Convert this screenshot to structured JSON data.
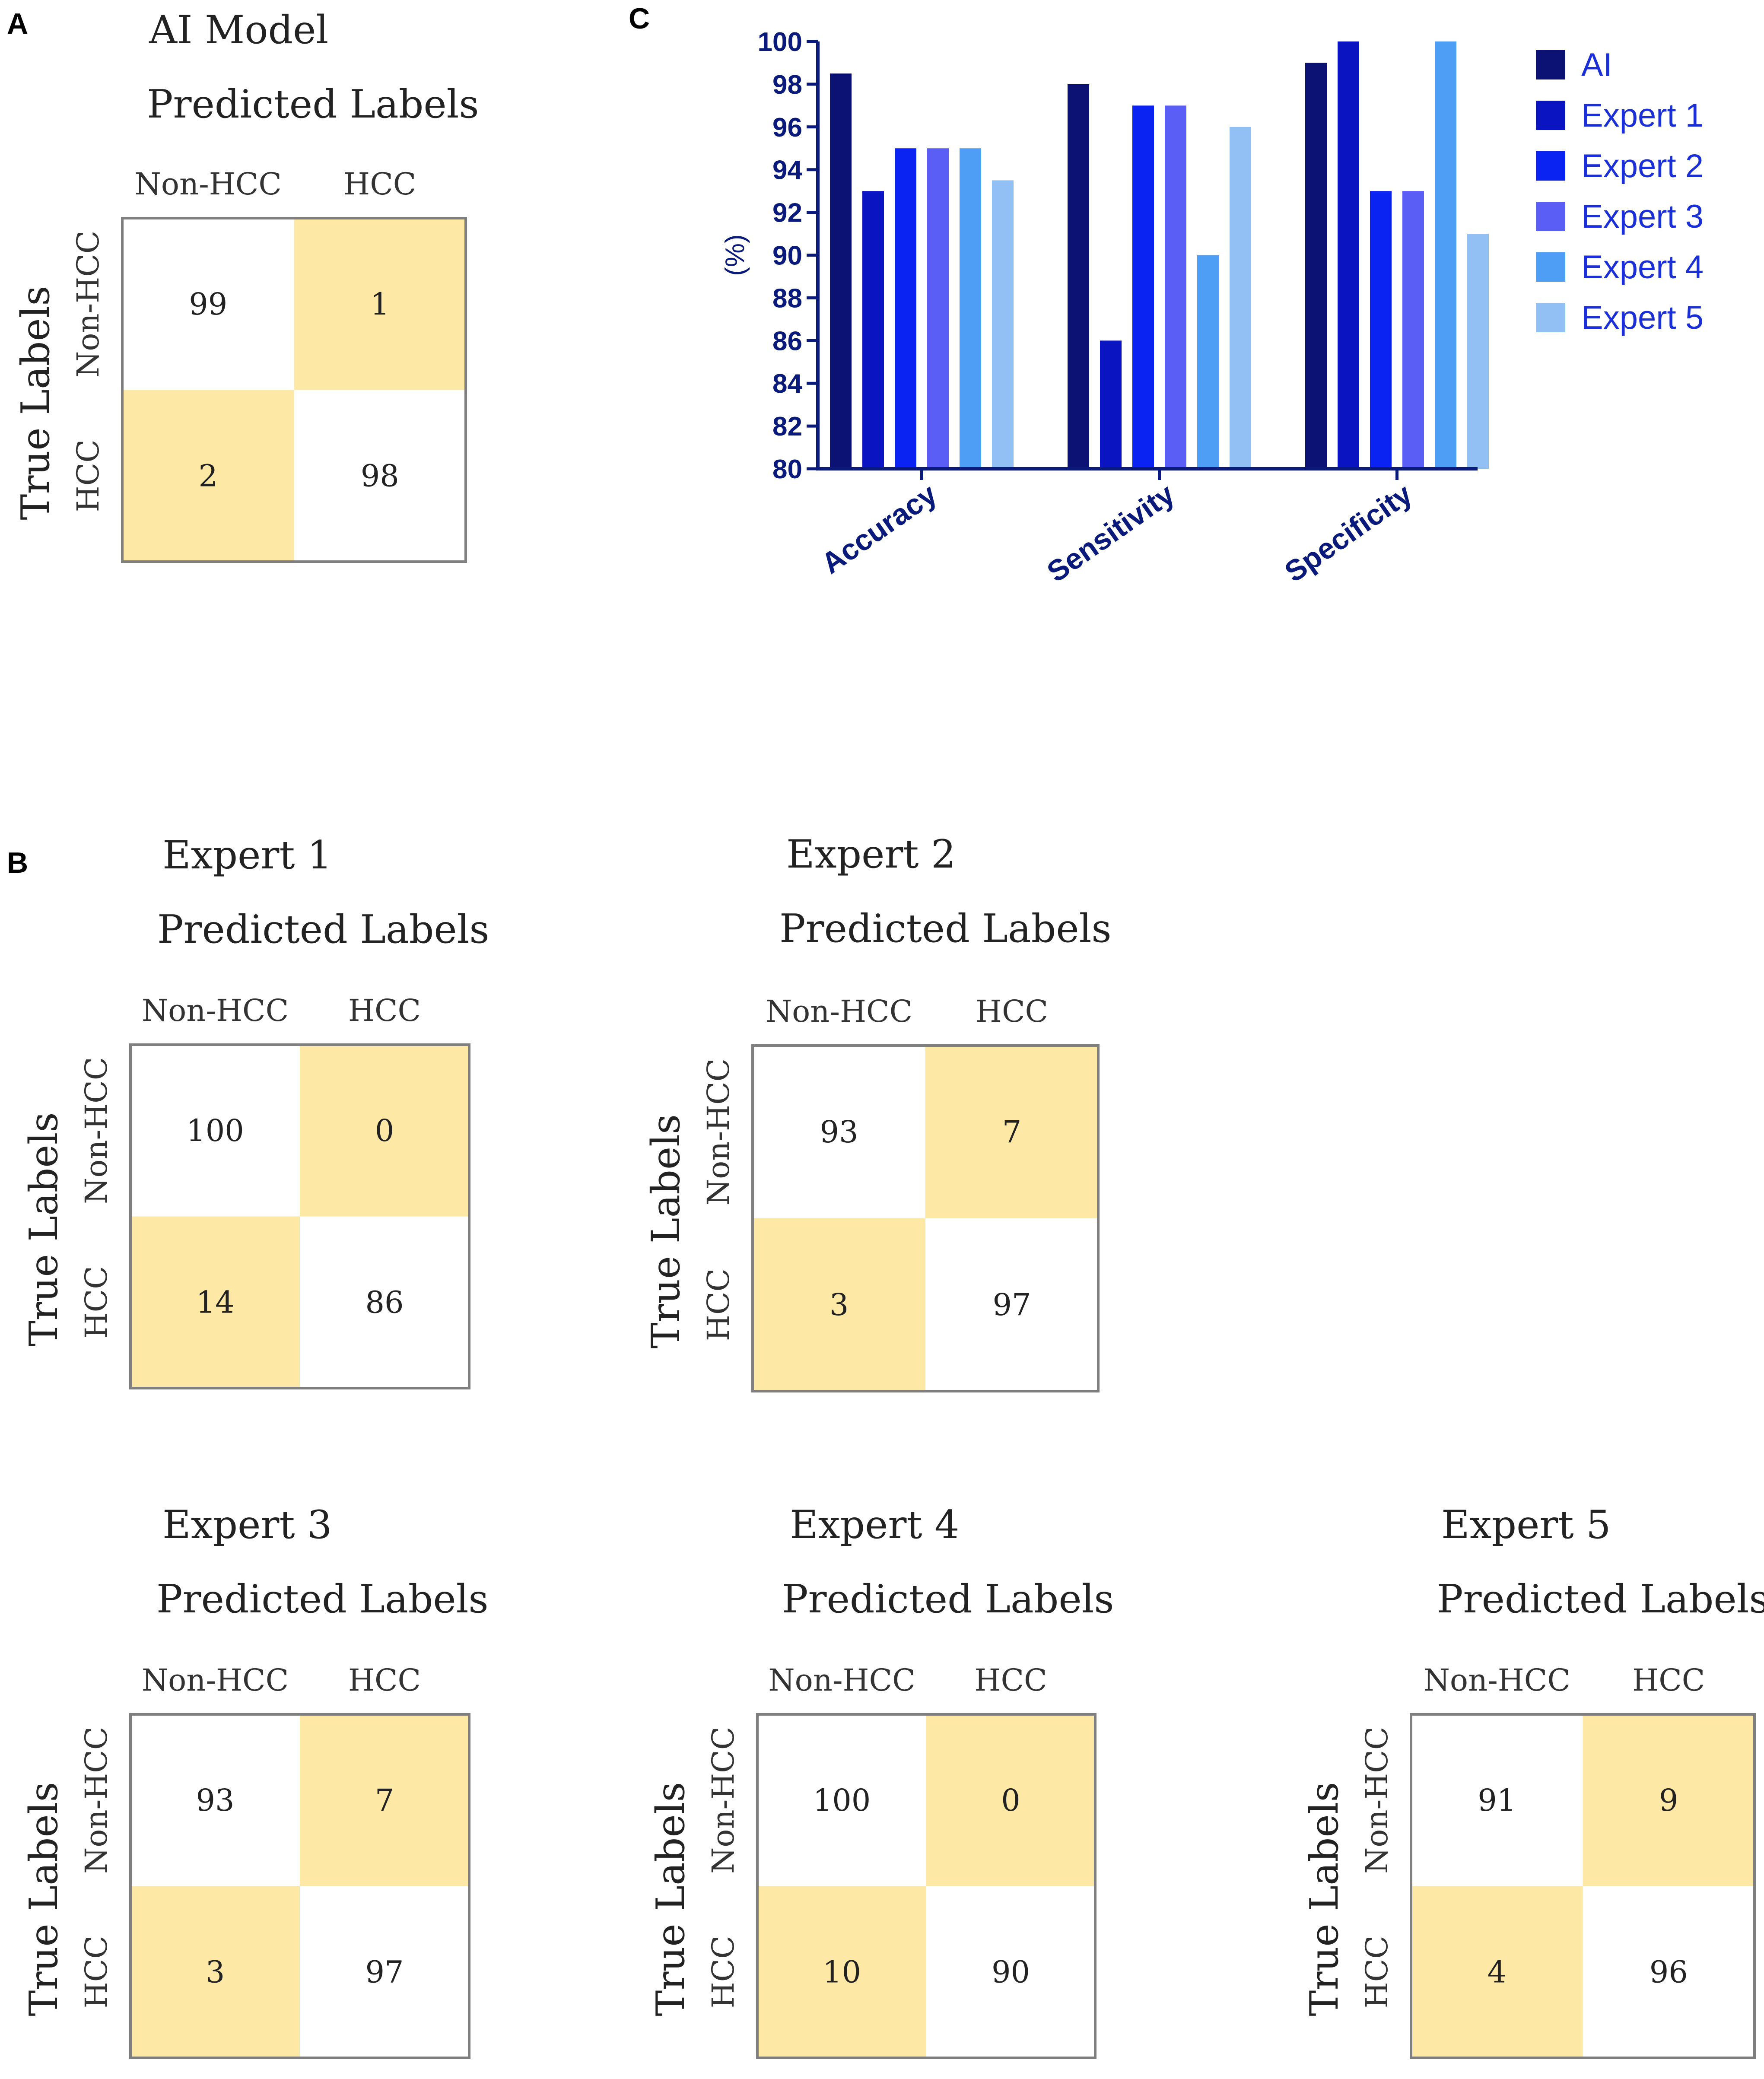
{
  "panels": {
    "a": "A",
    "b": "B",
    "c": "C"
  },
  "matrix_common": {
    "predicted": "Predicted Labels",
    "true": "True Labels",
    "col_labels": [
      "Non-HCC",
      "HCC"
    ],
    "row_labels": [
      "Non-HCC",
      "HCC"
    ],
    "cell_colors": {
      "correct": "#ffffff",
      "error": "#fde8a6",
      "border": "#7f7f7f"
    }
  },
  "matrices": [
    {
      "title": "AI Model",
      "values": [
        [
          99,
          1
        ],
        [
          2,
          98
        ]
      ]
    },
    {
      "title": "Expert 1",
      "values": [
        [
          100,
          0
        ],
        [
          14,
          86
        ]
      ]
    },
    {
      "title": "Expert 2",
      "values": [
        [
          93,
          7
        ],
        [
          3,
          97
        ]
      ]
    },
    {
      "title": "Expert 3",
      "values": [
        [
          93,
          7
        ],
        [
          3,
          97
        ]
      ]
    },
    {
      "title": "Expert 4",
      "values": [
        [
          100,
          0
        ],
        [
          10,
          90
        ]
      ]
    },
    {
      "title": "Expert 5",
      "values": [
        [
          91,
          9
        ],
        [
          4,
          96
        ]
      ]
    }
  ],
  "chart_data": {
    "type": "bar",
    "title": "",
    "xlabel": "",
    "ylabel": "(%)",
    "ylim": [
      80,
      100
    ],
    "yticks": [
      80,
      82,
      84,
      86,
      88,
      90,
      92,
      94,
      96,
      98,
      100
    ],
    "categories": [
      "Accuracy",
      "Sensitivity",
      "Specificity"
    ],
    "series": [
      {
        "name": "AI",
        "color": "#0b1273",
        "values": [
          98.5,
          98,
          99
        ]
      },
      {
        "name": "Expert 1",
        "color": "#0a14c0",
        "values": [
          93,
          86,
          100
        ]
      },
      {
        "name": "Expert 2",
        "color": "#0a22f2",
        "values": [
          95,
          97,
          93
        ]
      },
      {
        "name": "Expert 3",
        "color": "#5b5ef5",
        "values": [
          95,
          97,
          93
        ]
      },
      {
        "name": "Expert 4",
        "color": "#4f9ef5",
        "values": [
          95,
          90,
          100
        ]
      },
      {
        "name": "Expert 5",
        "color": "#92c0f5",
        "values": [
          93.5,
          96,
          91
        ]
      }
    ],
    "legend": "right",
    "grid": false
  }
}
